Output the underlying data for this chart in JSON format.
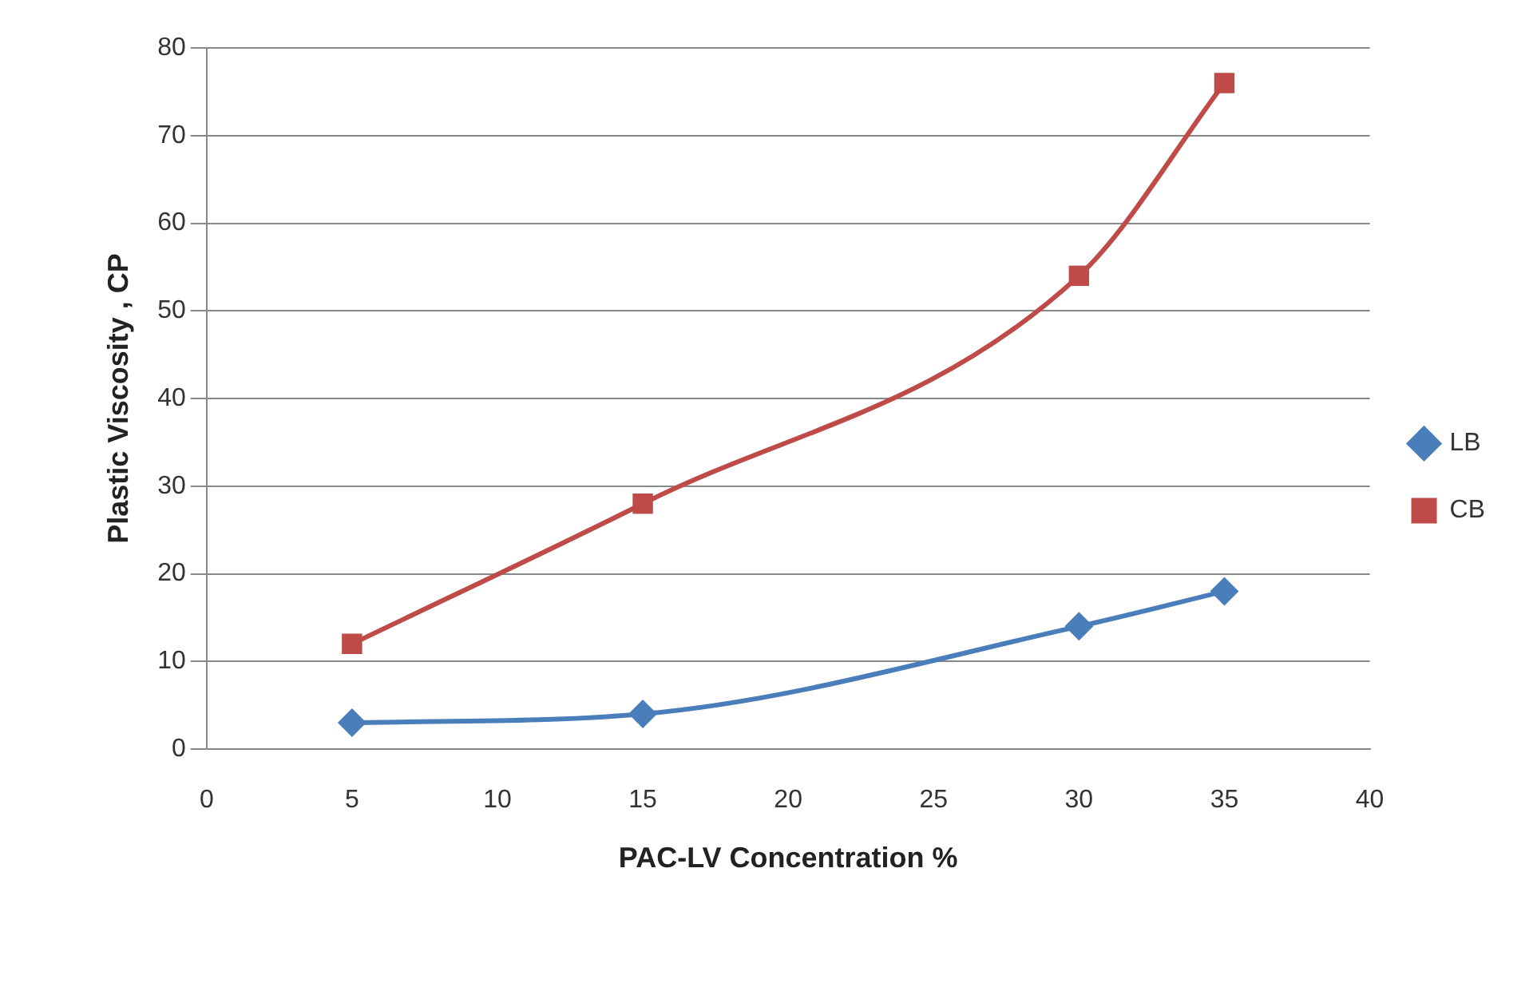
{
  "chart_data": {
    "type": "line",
    "xlabel": "PAC-LV Concentration %",
    "ylabel": "Plastic Viscosity , CP",
    "x": [
      5,
      15,
      30,
      35
    ],
    "series": [
      {
        "name": "LB",
        "color": "#4a7ebb",
        "values": [
          3,
          4,
          14,
          18
        ],
        "marker": "diamond"
      },
      {
        "name": "CB",
        "color": "#be4b48",
        "values": [
          12,
          28,
          54,
          76
        ],
        "marker": "square"
      }
    ],
    "xlim": [
      0,
      40
    ],
    "xticks": [
      0,
      5,
      10,
      15,
      20,
      25,
      30,
      35,
      40
    ],
    "ylim": [
      0,
      80
    ],
    "yticks": [
      0,
      10,
      20,
      30,
      40,
      50,
      60,
      70,
      80
    ],
    "grid": "y",
    "legend": "right"
  }
}
